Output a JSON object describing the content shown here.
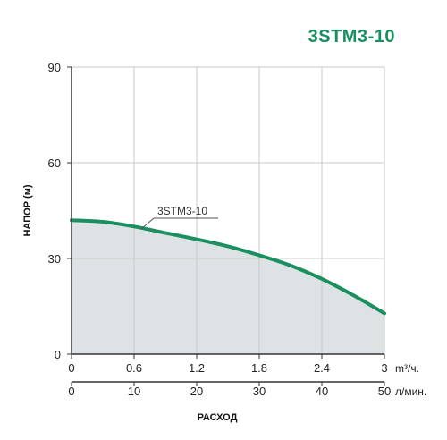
{
  "chart_data": {
    "type": "area",
    "title": "3STM3-10",
    "ylabel": "НАПОР (м)",
    "xlabel": "РАСХОД",
    "ylim": [
      0,
      90
    ],
    "yticks": [
      0,
      30,
      60,
      90
    ],
    "x_primary": {
      "unit": "m³/ч.",
      "ticks": [
        "0",
        "0.6",
        "1.2",
        "1.8",
        "2.4",
        "3"
      ],
      "range": [
        0,
        3
      ]
    },
    "x_secondary": {
      "unit": "л/мин.",
      "ticks": [
        "0",
        "10",
        "20",
        "30",
        "40",
        "50"
      ],
      "range": [
        0,
        50
      ]
    },
    "grid": true,
    "colors": {
      "curve": "#1a8f5f",
      "fill": "#dde3e4",
      "grid": "#c8c8c8",
      "title": "#1a8f5f"
    },
    "series": [
      {
        "name": "3STM3-10",
        "x": [
          0,
          0.3,
          0.6,
          0.9,
          1.2,
          1.5,
          1.8,
          2.1,
          2.4,
          2.7,
          3.0
        ],
        "y": [
          42,
          41.5,
          40,
          38,
          36,
          33.8,
          31,
          27.8,
          23.6,
          18.5,
          12.8
        ]
      }
    ]
  }
}
